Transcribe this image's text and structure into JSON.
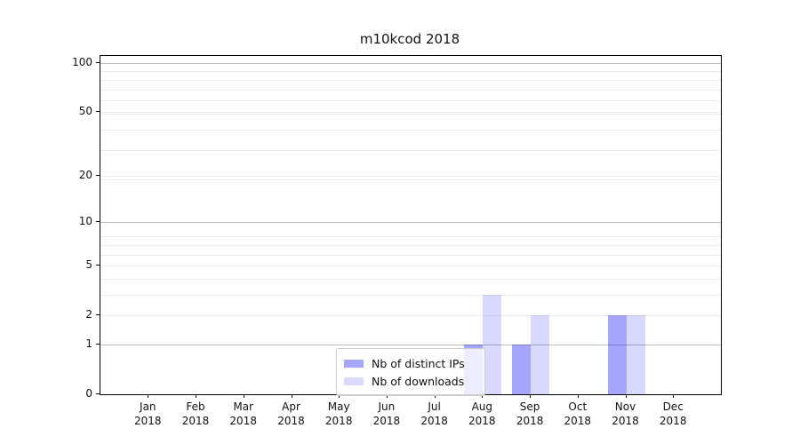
{
  "chart_data": {
    "type": "bar",
    "title": "m10kcod 2018",
    "x_tick_months": [
      "Jan",
      "Feb",
      "Mar",
      "Apr",
      "May",
      "Jun",
      "Jul",
      "Aug",
      "Sep",
      "Oct",
      "Nov",
      "Dec"
    ],
    "x_tick_year": "2018",
    "series": [
      {
        "name": "Nb of distinct IPs",
        "color": "rgba(0,0,255,0.35)",
        "values": [
          0,
          0,
          0,
          0,
          0,
          0,
          0,
          1,
          1,
          0,
          2,
          0
        ]
      },
      {
        "name": "Nb of downloads",
        "color": "rgba(0,0,255,0.15)",
        "values": [
          0,
          0,
          0,
          0,
          0,
          0,
          0,
          3,
          2,
          0,
          2,
          0
        ]
      }
    ],
    "y_axis": {
      "scale": "log10(1+x)",
      "tick_values": [
        0,
        1,
        2,
        5,
        10,
        20,
        50,
        100
      ],
      "major_grid_values": [
        1,
        10,
        100
      ],
      "minor_grid_values": [
        2,
        3,
        4,
        5,
        6,
        7,
        8,
        19,
        20,
        29,
        39,
        49,
        50,
        59,
        69,
        79,
        89
      ],
      "ylim": [
        0,
        110
      ]
    },
    "legend": {
      "position": "lower center",
      "entries": [
        "Nb of distinct IPs",
        "Nb of downloads"
      ]
    },
    "grid": "both",
    "colors": {
      "bar_distinct_ips": "rgba(0,0,255,0.35)",
      "bar_downloads": "rgba(0,0,255,0.15)",
      "major_grid": "#bcbcbc",
      "minor_grid": "#ebebeb",
      "axis": "#000000",
      "text": "#111111",
      "legend_border": "#cccccc",
      "legend_bg": "rgba(255,255,255,0.8)"
    }
  }
}
